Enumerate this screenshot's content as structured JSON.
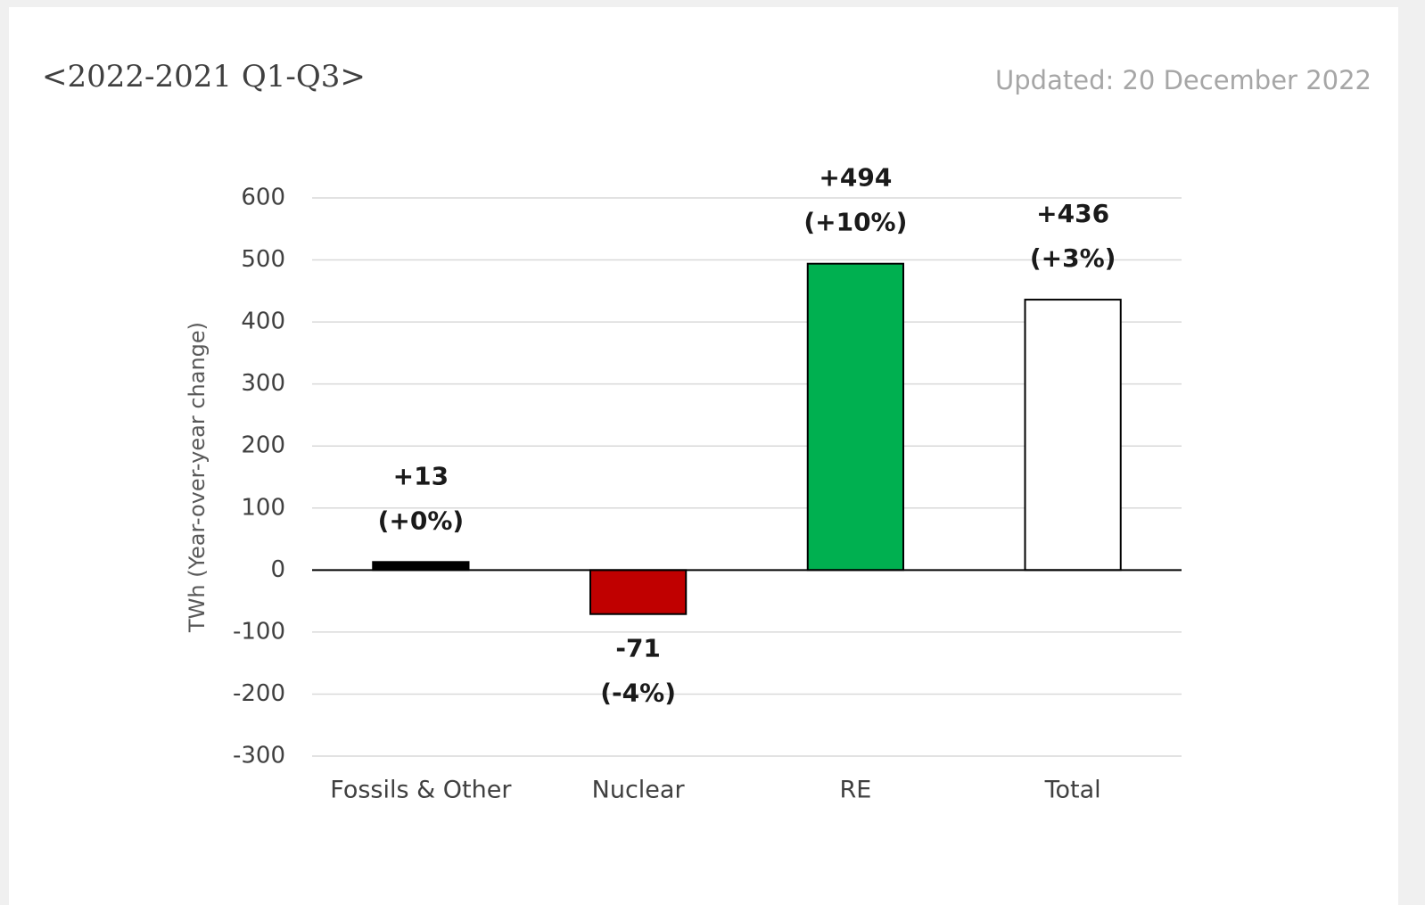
{
  "chart_data": {
    "type": "bar",
    "title": "<2022-2021 Q1-Q3>",
    "subtitle": "Updated: 20 December 2022",
    "y_label": "TWh (Year-over-year  change)",
    "categories": [
      "Fossils & Other",
      "Nuclear",
      "RE",
      "Total"
    ],
    "values": [
      13,
      -71,
      494,
      436
    ],
    "value_labels": [
      "+13",
      "-71",
      "+494",
      "+436"
    ],
    "percent_labels": [
      "(+0%)",
      "(-4%)",
      "(+10%)",
      "(+3%)"
    ],
    "colors": [
      "#000000",
      "#c00000",
      "#00b050",
      "#ffffff"
    ],
    "ylim": [
      -300,
      600
    ],
    "yticks": [
      -300,
      -200,
      -100,
      0,
      100,
      200,
      300,
      400,
      500,
      600
    ],
    "grid": true
  }
}
